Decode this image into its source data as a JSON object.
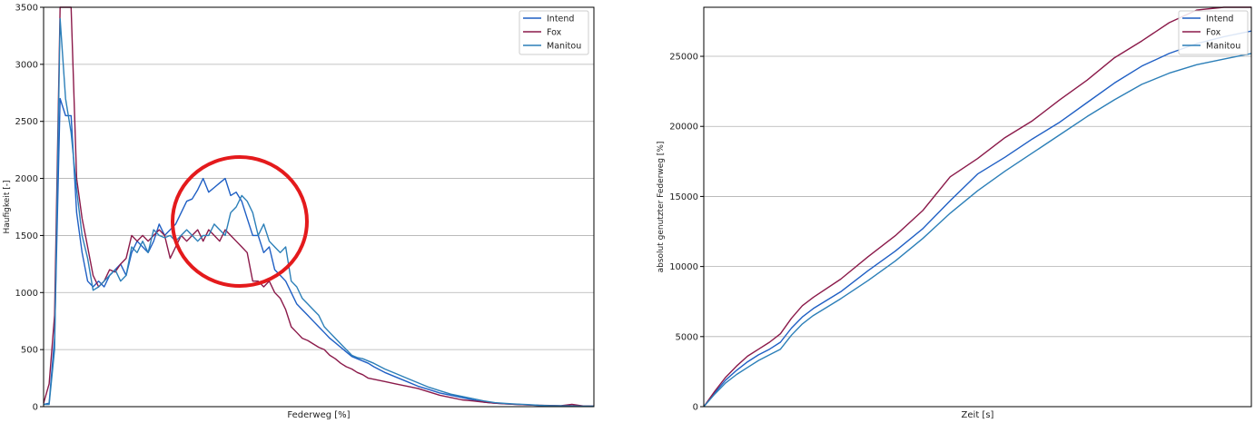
{
  "chart_data": [
    {
      "type": "line",
      "xlabel": "Federweg [%]",
      "ylabel": "Haufigkeit [-]",
      "ylim": [
        0,
        3500
      ],
      "yticks": [
        0,
        500,
        1000,
        1500,
        2000,
        2500,
        3000,
        3500
      ],
      "xlim": [
        0,
        100
      ],
      "grid": "horizontal",
      "legend_position": "top-right",
      "annotation": "red circle highlighting 35-50% travel region",
      "x": [
        0,
        1,
        2,
        3,
        4,
        5,
        6,
        7,
        8,
        9,
        10,
        11,
        12,
        13,
        14,
        15,
        16,
        17,
        18,
        19,
        20,
        21,
        22,
        23,
        24,
        25,
        26,
        27,
        28,
        29,
        30,
        31,
        32,
        33,
        34,
        35,
        36,
        37,
        38,
        39,
        40,
        41,
        42,
        43,
        44,
        45,
        46,
        47,
        48,
        49,
        50,
        51,
        52,
        53,
        54,
        55,
        56,
        57,
        58,
        59,
        60,
        62,
        64,
        66,
        68,
        70,
        72,
        74,
        76,
        78,
        80,
        82,
        84,
        86,
        88,
        90,
        92,
        94,
        96,
        98,
        100
      ],
      "series": [
        {
          "name": "Intend",
          "color": "#1f5fc4",
          "values": [
            20,
            30,
            600,
            2700,
            2550,
            2550,
            1700,
            1350,
            1100,
            1050,
            1100,
            1050,
            1150,
            1200,
            1250,
            1150,
            1350,
            1450,
            1400,
            1350,
            1450,
            1600,
            1500,
            1550,
            1600,
            1700,
            1800,
            1820,
            1900,
            2000,
            1880,
            1920,
            1960,
            2000,
            1850,
            1880,
            1800,
            1650,
            1500,
            1500,
            1350,
            1400,
            1200,
            1150,
            1100,
            1000,
            900,
            850,
            800,
            750,
            700,
            650,
            600,
            560,
            520,
            480,
            440,
            420,
            400,
            380,
            350,
            300,
            260,
            220,
            180,
            150,
            120,
            100,
            80,
            60,
            40,
            30,
            25,
            20,
            15,
            10,
            8,
            6,
            5,
            4,
            3
          ]
        },
        {
          "name": "Fox",
          "color": "#8b1a4a",
          "values": [
            30,
            200,
            800,
            3500,
            3500,
            3500,
            2000,
            1650,
            1400,
            1150,
            1050,
            1100,
            1200,
            1180,
            1250,
            1300,
            1500,
            1450,
            1500,
            1450,
            1500,
            1550,
            1500,
            1300,
            1400,
            1500,
            1450,
            1500,
            1550,
            1450,
            1550,
            1500,
            1450,
            1550,
            1500,
            1450,
            1400,
            1350,
            1100,
            1100,
            1050,
            1100,
            1000,
            950,
            850,
            700,
            650,
            600,
            580,
            550,
            520,
            500,
            450,
            420,
            380,
            350,
            330,
            300,
            280,
            250,
            240,
            220,
            200,
            180,
            160,
            130,
            100,
            80,
            60,
            50,
            40,
            30,
            25,
            20,
            15,
            12,
            10,
            8,
            20,
            6,
            4
          ]
        },
        {
          "name": "Manitou",
          "color": "#2c7fb8",
          "values": [
            20,
            20,
            500,
            3400,
            2700,
            2400,
            1900,
            1500,
            1300,
            1020,
            1050,
            1100,
            1150,
            1200,
            1100,
            1150,
            1400,
            1350,
            1450,
            1350,
            1550,
            1500,
            1480,
            1500,
            1450,
            1500,
            1550,
            1500,
            1450,
            1500,
            1500,
            1600,
            1550,
            1500,
            1700,
            1750,
            1850,
            1800,
            1700,
            1500,
            1600,
            1450,
            1400,
            1350,
            1400,
            1100,
            1050,
            950,
            900,
            850,
            800,
            700,
            650,
            600,
            550,
            500,
            450,
            430,
            420,
            400,
            380,
            330,
            290,
            250,
            210,
            170,
            140,
            110,
            90,
            70,
            50,
            35,
            28,
            22,
            18,
            12,
            9,
            7,
            6,
            5,
            4
          ]
        }
      ]
    },
    {
      "type": "line",
      "xlabel": "Zeit [s]",
      "ylabel": "absolut genutzter Federweg [%]",
      "ylim": [
        0,
        28500
      ],
      "yticks": [
        0,
        5000,
        10000,
        15000,
        20000,
        25000
      ],
      "xlim": [
        0,
        100
      ],
      "grid": "horizontal",
      "legend_position": "top-right",
      "x": [
        0,
        2,
        4,
        6,
        8,
        10,
        12,
        14,
        16,
        18,
        20,
        25,
        30,
        35,
        40,
        45,
        50,
        55,
        60,
        65,
        70,
        75,
        80,
        85,
        90,
        95,
        100
      ],
      "series": [
        {
          "name": "Intend",
          "color": "#1f5fc4",
          "values": [
            0,
            1000,
            1900,
            2600,
            3200,
            3700,
            4100,
            4600,
            5600,
            6400,
            7000,
            8200,
            9700,
            11100,
            12700,
            14700,
            16600,
            17800,
            19100,
            20300,
            21700,
            23100,
            24300,
            25200,
            25900,
            26400,
            26800
          ]
        },
        {
          "name": "Fox",
          "color": "#8b1a4a",
          "values": [
            0,
            1100,
            2100,
            2900,
            3600,
            4100,
            4600,
            5200,
            6300,
            7200,
            7800,
            9100,
            10700,
            12200,
            14000,
            16400,
            17700,
            19200,
            20400,
            21900,
            23300,
            24900,
            26100,
            27400,
            28300,
            28600,
            28600
          ]
        },
        {
          "name": "Manitou",
          "color": "#2c7fb8",
          "values": [
            0,
            900,
            1700,
            2300,
            2800,
            3300,
            3700,
            4100,
            5100,
            5900,
            6500,
            7700,
            9000,
            10400,
            12000,
            13800,
            15400,
            16800,
            18100,
            19400,
            20700,
            21900,
            23000,
            23800,
            24400,
            24800,
            25200
          ]
        }
      ]
    }
  ]
}
